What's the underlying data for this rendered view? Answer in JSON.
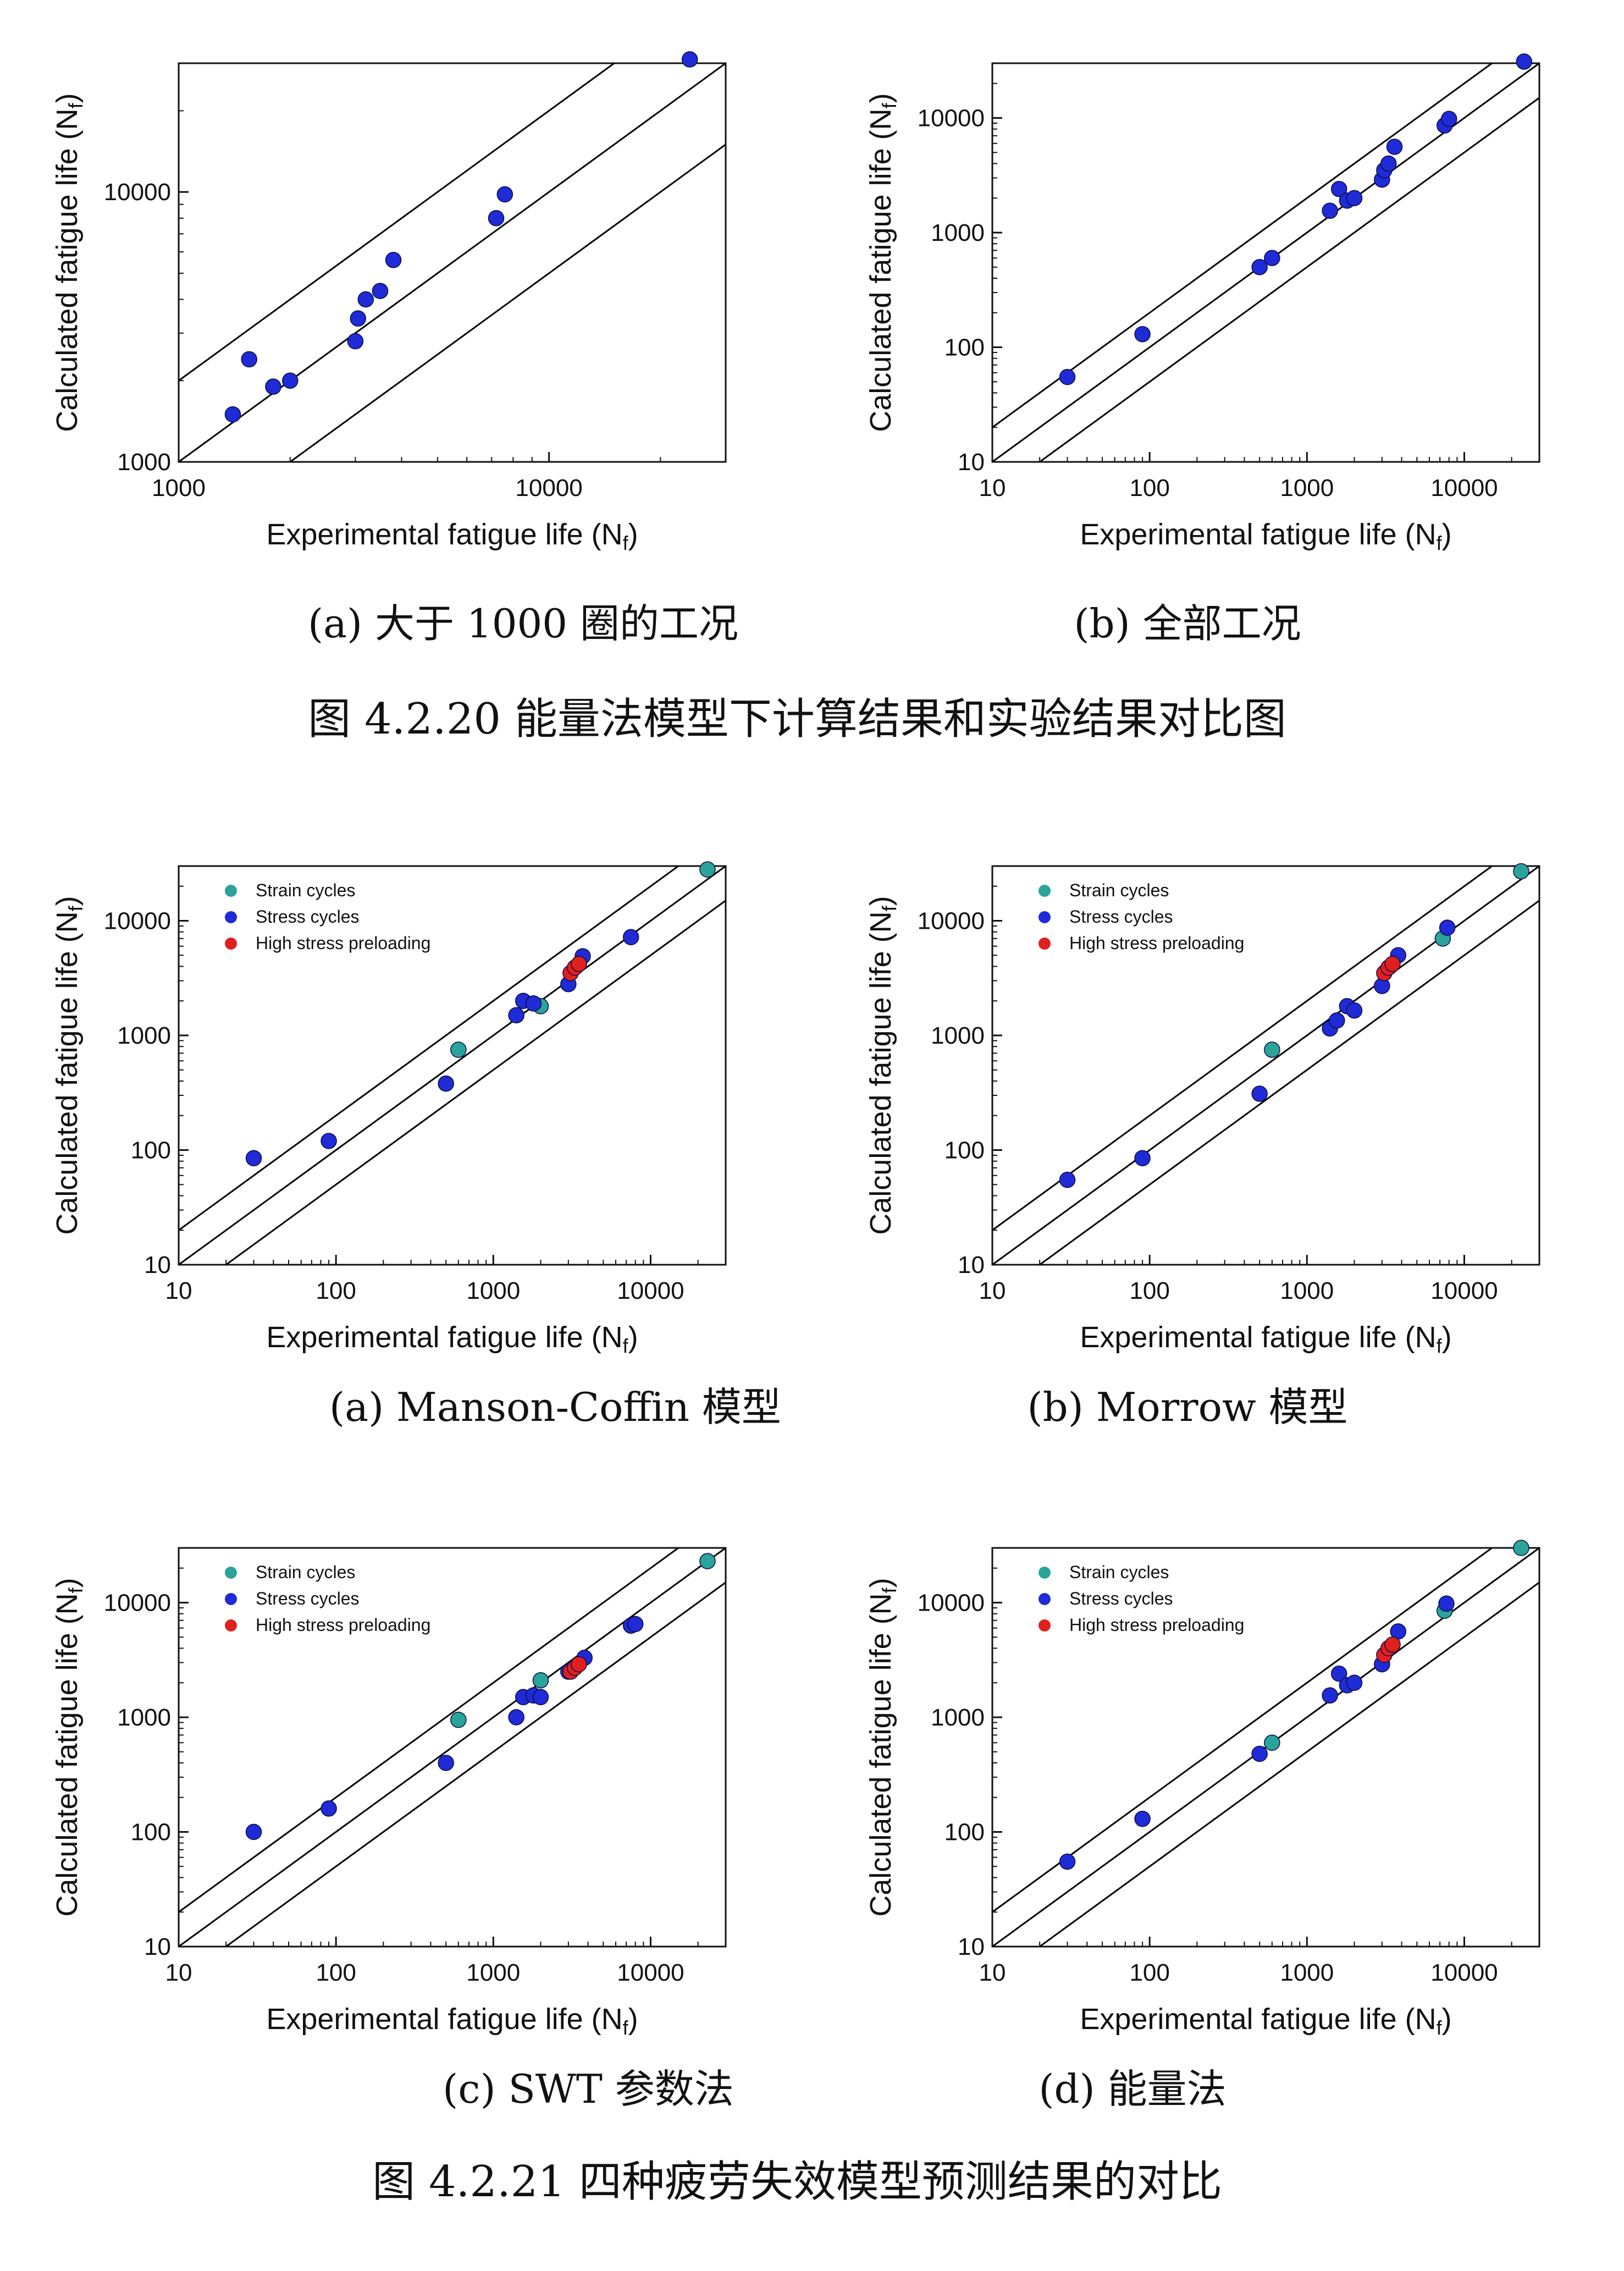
{
  "figures": [
    {
      "caption": "图 4.2.20  能量法模型下计算结果和实验结果对比图",
      "subcaptions": [
        "(a)  大于 1000 圈的工况",
        "(b)  全部工况"
      ]
    },
    {
      "caption": "图 4.2.21  四种疲劳失效模型预测结果的对比",
      "subcaptions": [
        "(a) Manson-Coffin 模型",
        "(b) Morrow 模型",
        "(c) SWT 参数法",
        "(d) 能量法"
      ]
    }
  ],
  "axis_text": {
    "xlabel": "Experimental fatigue life (N",
    "ylabel": "Calculated fatigue life (N",
    "sub": "f",
    "close": ")"
  },
  "colors": {
    "strain": "#2aa39b",
    "stress": "#1f2bd6",
    "preload": "#e0201e",
    "line": "#000000"
  },
  "legend_labels": [
    "Strain cycles",
    "Stress cycles",
    "High stress preloading"
  ],
  "chart_data": [
    {
      "id": "4.2.20a",
      "type": "scatter",
      "log": true,
      "xlim": [
        1000,
        30000
      ],
      "ylim": [
        1000,
        30000
      ],
      "xticks": [
        1000,
        10000
      ],
      "yticks": [
        1000,
        10000
      ],
      "xlabel": "Experimental fatigue life (Nf)",
      "ylabel": "Calculated fatigue life (Nf)",
      "reference_lines": [
        0.5,
        1,
        2
      ],
      "legend": false,
      "series": [
        {
          "kind": "stress",
          "x": [
            1400,
            1550,
            1800,
            2000,
            3000,
            3050,
            3200,
            3500,
            3800,
            7200,
            7600,
            24000
          ],
          "y": [
            1500,
            2400,
            1900,
            2000,
            2800,
            3400,
            4000,
            4300,
            5600,
            8000,
            9800,
            31000
          ]
        }
      ]
    },
    {
      "id": "4.2.20b",
      "type": "scatter",
      "log": true,
      "xlim": [
        10,
        30000
      ],
      "ylim": [
        10,
        30000
      ],
      "xticks": [
        10,
        100,
        1000,
        10000
      ],
      "yticks": [
        10,
        100,
        1000,
        10000
      ],
      "xlabel": "Experimental fatigue life (Nf)",
      "ylabel": "Calculated fatigue life (Nf)",
      "reference_lines": [
        0.5,
        1,
        2
      ],
      "legend": false,
      "series": [
        {
          "kind": "stress",
          "x": [
            30,
            90,
            500,
            600,
            1400,
            1600,
            1800,
            2000,
            3000,
            3100,
            3300,
            3600,
            7500,
            8000,
            24000
          ],
          "y": [
            55,
            130,
            500,
            600,
            1550,
            2400,
            1900,
            2000,
            2900,
            3500,
            4000,
            5600,
            8600,
            9800,
            31000
          ]
        }
      ]
    },
    {
      "id": "4.2.21a",
      "type": "scatter",
      "log": true,
      "xlim": [
        10,
        30000
      ],
      "ylim": [
        10,
        30000
      ],
      "xticks": [
        10,
        100,
        1000,
        10000
      ],
      "yticks": [
        10,
        100,
        1000,
        10000
      ],
      "xlabel": "Experimental fatigue life (Nf)",
      "ylabel": "Calculated fatigue life (Nf)",
      "reference_lines": [
        0.5,
        1,
        2
      ],
      "legend": "top-left",
      "series": [
        {
          "kind": "strain",
          "name": "Strain cycles",
          "x": [
            600,
            2000,
            23000
          ],
          "y": [
            750,
            1800,
            28000
          ]
        },
        {
          "kind": "stress",
          "name": "Stress cycles",
          "x": [
            30,
            90,
            500,
            1400,
            1550,
            1800,
            3000,
            3700,
            7500
          ],
          "y": [
            85,
            120,
            380,
            1500,
            2000,
            1900,
            2800,
            4900,
            7200
          ]
        },
        {
          "kind": "preload",
          "name": "High stress preloading",
          "x": [
            3100,
            3300,
            3500
          ],
          "y": [
            3500,
            3900,
            4200
          ]
        }
      ]
    },
    {
      "id": "4.2.21b",
      "type": "scatter",
      "log": true,
      "xlim": [
        10,
        30000
      ],
      "ylim": [
        10,
        30000
      ],
      "xticks": [
        10,
        100,
        1000,
        10000
      ],
      "yticks": [
        10,
        100,
        1000,
        10000
      ],
      "xlabel": "Experimental fatigue life (Nf)",
      "ylabel": "Calculated fatigue life (Nf)",
      "reference_lines": [
        0.5,
        1,
        2
      ],
      "legend": "top-left",
      "series": [
        {
          "kind": "strain",
          "name": "Strain cycles",
          "x": [
            600,
            7300,
            23000
          ],
          "y": [
            750,
            7000,
            27000
          ]
        },
        {
          "kind": "stress",
          "name": "Stress cycles",
          "x": [
            30,
            90,
            500,
            1400,
            1550,
            1800,
            2000,
            3000,
            3800,
            7800
          ],
          "y": [
            55,
            85,
            310,
            1150,
            1350,
            1800,
            1650,
            2700,
            5000,
            8700
          ]
        },
        {
          "kind": "preload",
          "name": "High stress preloading",
          "x": [
            3100,
            3300,
            3500
          ],
          "y": [
            3500,
            3900,
            4200
          ]
        }
      ]
    },
    {
      "id": "4.2.21c",
      "type": "scatter",
      "log": true,
      "xlim": [
        10,
        30000
      ],
      "ylim": [
        10,
        30000
      ],
      "xticks": [
        10,
        100,
        1000,
        10000
      ],
      "yticks": [
        10,
        100,
        1000,
        10000
      ],
      "xlabel": "Experimental fatigue life (Nf)",
      "ylabel": "Calculated fatigue life (Nf)",
      "reference_lines": [
        0.5,
        1,
        2
      ],
      "legend": "top-left",
      "series": [
        {
          "kind": "strain",
          "name": "Strain cycles",
          "x": [
            600,
            2000,
            23000
          ],
          "y": [
            950,
            2100,
            23000
          ]
        },
        {
          "kind": "stress",
          "name": "Stress cycles",
          "x": [
            30,
            90,
            500,
            1400,
            1550,
            1800,
            2000,
            3000,
            3800,
            7500,
            8000
          ],
          "y": [
            100,
            160,
            400,
            1000,
            1500,
            1550,
            1500,
            2500,
            3300,
            6300,
            6500
          ]
        },
        {
          "kind": "preload",
          "name": "High stress preloading",
          "x": [
            3100,
            3300,
            3500
          ],
          "y": [
            2500,
            2700,
            2900
          ]
        }
      ]
    },
    {
      "id": "4.2.21d",
      "type": "scatter",
      "log": true,
      "xlim": [
        10,
        30000
      ],
      "ylim": [
        10,
        30000
      ],
      "xticks": [
        10,
        100,
        1000,
        10000
      ],
      "yticks": [
        10,
        100,
        1000,
        10000
      ],
      "xlabel": "Experimental fatigue life (Nf)",
      "ylabel": "Calculated fatigue life (Nf)",
      "reference_lines": [
        0.5,
        1,
        2
      ],
      "legend": "top-left",
      "series": [
        {
          "kind": "strain",
          "name": "Strain cycles",
          "x": [
            600,
            7500,
            23000
          ],
          "y": [
            600,
            8500,
            30000
          ]
        },
        {
          "kind": "stress",
          "name": "Stress cycles",
          "x": [
            30,
            90,
            500,
            1400,
            1600,
            1800,
            2000,
            3000,
            3800,
            7700
          ],
          "y": [
            55,
            130,
            480,
            1550,
            2400,
            1900,
            2000,
            2900,
            5600,
            9800
          ]
        },
        {
          "kind": "preload",
          "name": "High stress preloading",
          "x": [
            3100,
            3300,
            3500
          ],
          "y": [
            3500,
            4000,
            4300
          ]
        }
      ]
    }
  ]
}
